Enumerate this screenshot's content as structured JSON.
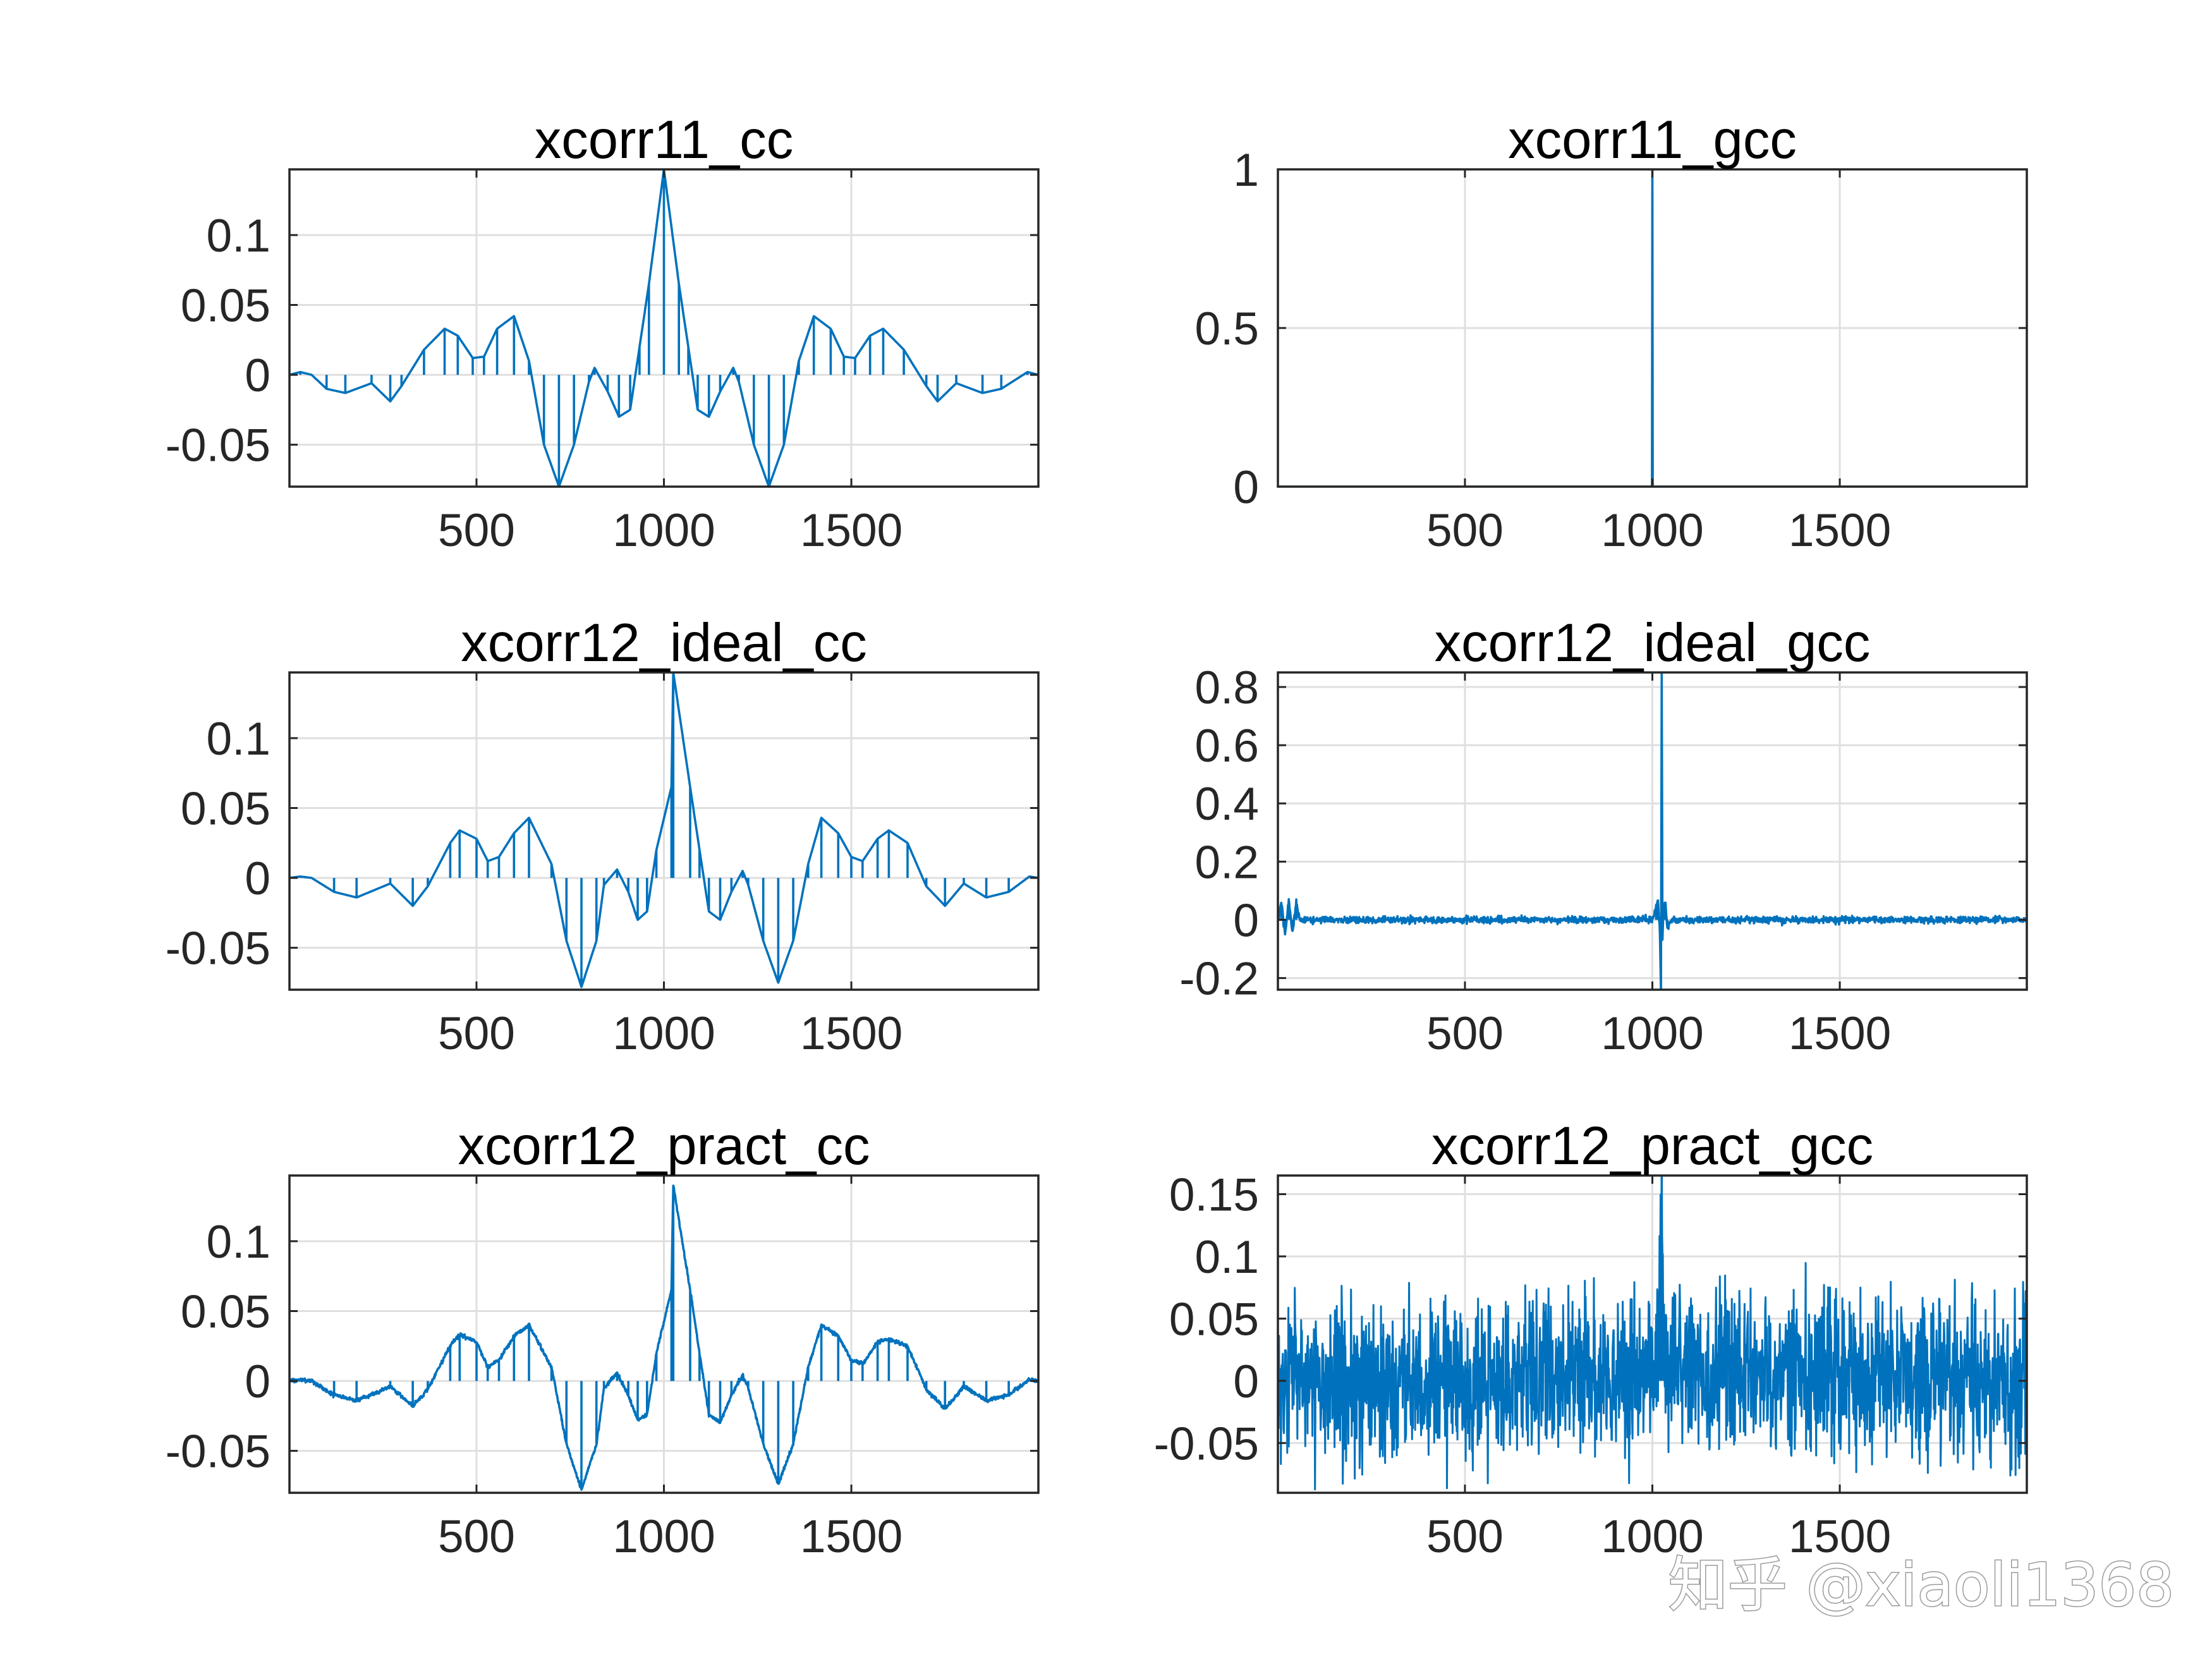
{
  "watermark": "知乎 @xiaoli1368",
  "colors": {
    "line": "#0072BD",
    "grid": "#DFDFDF",
    "axis": "#262626"
  },
  "chart_data": [
    {
      "type": "line",
      "title": "xcorr11_cc",
      "xlim": [
        1,
        1999
      ],
      "ylim": [
        -0.08,
        0.147
      ],
      "xticks": [
        500,
        1000,
        1500
      ],
      "xtick_labels": [
        "500",
        "1000",
        "1500"
      ],
      "yticks": [
        -0.05,
        0,
        0.05,
        0.1
      ],
      "ytick_labels": [
        "-0.05",
        "0",
        "0.05",
        "0.1"
      ],
      "grid": true,
      "noise": 0,
      "series": [
        {
          "x": [
            1,
            30,
            60,
            100,
            150,
            220,
            270,
            300,
            360,
            415,
            450,
            490,
            520,
            555,
            600,
            640,
            680,
            720,
            760,
            800,
            815,
            850,
            880,
            910,
            935,
            960,
            1000,
            1040,
            1065,
            1090,
            1120,
            1150,
            1185,
            1200,
            1240,
            1280,
            1320,
            1360,
            1400,
            1445,
            1480,
            1510,
            1550,
            1585,
            1640,
            1700,
            1730,
            1780,
            1850,
            1900,
            1970,
            1999
          ],
          "y": [
            0,
            0.002,
            0,
            -0.01,
            -0.013,
            -0.006,
            -0.019,
            -0.008,
            0.018,
            0.033,
            0.028,
            0.012,
            0.013,
            0.033,
            0.042,
            0.01,
            -0.05,
            -0.08,
            -0.05,
            -0.005,
            0.005,
            -0.012,
            -0.03,
            -0.025,
            0.02,
            0.065,
            0.147,
            0.065,
            0.02,
            -0.025,
            -0.03,
            -0.012,
            0.005,
            -0.005,
            -0.05,
            -0.08,
            -0.05,
            0.01,
            0.042,
            0.033,
            0.013,
            0.012,
            0.028,
            0.033,
            0.018,
            -0.008,
            -0.019,
            -0.006,
            -0.013,
            -0.01,
            0.002,
            0
          ]
        }
      ]
    },
    {
      "type": "line",
      "title": "xcorr11_gcc",
      "xlim": [
        1,
        1999
      ],
      "ylim": [
        0,
        1
      ],
      "xticks": [
        500,
        1000,
        1500
      ],
      "xtick_labels": [
        "500",
        "1000",
        "1500"
      ],
      "yticks": [
        0,
        0.5,
        1
      ],
      "ytick_labels": [
        "0",
        "0.5",
        "1"
      ],
      "grid": true,
      "noise": 0,
      "series": [
        {
          "x": [
            1,
            999,
            1000,
            1001,
            1999
          ],
          "y": [
            0,
            0,
            1,
            0,
            0
          ]
        }
      ]
    },
    {
      "type": "line",
      "title": "xcorr12_ideal_cc",
      "xlim": [
        1,
        1999
      ],
      "ylim": [
        -0.08,
        0.147
      ],
      "xticks": [
        500,
        1000,
        1500
      ],
      "xtick_labels": [
        "500",
        "1000",
        "1500"
      ],
      "yticks": [
        -0.05,
        0,
        0.05,
        0.1
      ],
      "ytick_labels": [
        "-0.05",
        "0",
        "0.05",
        "0.1"
      ],
      "grid": true,
      "noise": 0,
      "series": [
        {
          "x": [
            1,
            30,
            60,
            120,
            180,
            270,
            330,
            370,
            430,
            455,
            500,
            530,
            560,
            600,
            640,
            700,
            740,
            780,
            820,
            840,
            875,
            905,
            930,
            955,
            980,
            1020,
            1025,
            1070,
            1095,
            1120,
            1150,
            1180,
            1210,
            1225,
            1265,
            1305,
            1345,
            1385,
            1420,
            1465,
            1500,
            1530,
            1570,
            1600,
            1650,
            1700,
            1750,
            1800,
            1860,
            1920,
            1975,
            1999
          ],
          "y": [
            0,
            0.001,
            0,
            -0.01,
            -0.014,
            -0.004,
            -0.02,
            -0.006,
            0.025,
            0.034,
            0.028,
            0.012,
            0.015,
            0.032,
            0.043,
            0.01,
            -0.045,
            -0.078,
            -0.045,
            -0.005,
            0.006,
            -0.01,
            -0.03,
            -0.024,
            0.02,
            0.065,
            0.147,
            0.065,
            0.02,
            -0.024,
            -0.03,
            -0.01,
            0.005,
            -0.005,
            -0.045,
            -0.075,
            -0.045,
            0.01,
            0.043,
            0.032,
            0.015,
            0.012,
            0.028,
            0.034,
            0.025,
            -0.006,
            -0.02,
            -0.004,
            -0.014,
            -0.01,
            0.001,
            0
          ]
        }
      ]
    },
    {
      "type": "line",
      "title": "xcorr12_ideal_gcc",
      "xlim": [
        1,
        1999
      ],
      "ylim": [
        -0.24,
        0.85
      ],
      "xticks": [
        500,
        1000,
        1500
      ],
      "xtick_labels": [
        "500",
        "1000",
        "1500"
      ],
      "yticks": [
        -0.2,
        0,
        0.2,
        0.4,
        0.6,
        0.8
      ],
      "ytick_labels": [
        "-0.2",
        "0",
        "0.2",
        "0.4",
        "0.6",
        "0.8"
      ],
      "grid": true,
      "noise": 0.01,
      "series": [
        {
          "x": [
            1,
            10,
            20,
            30,
            40,
            50,
            60,
            1000,
            1010,
            1015,
            1020,
            1023,
            1025,
            1027,
            1030,
            1035,
            1040,
            1050,
            1999
          ],
          "y": [
            0,
            0.06,
            -0.05,
            0.07,
            -0.04,
            0.06,
            0,
            0,
            0.04,
            0.07,
            -0.05,
            -0.24,
            0.85,
            -0.06,
            0.04,
            0.06,
            -0.03,
            0,
            0
          ]
        }
      ]
    },
    {
      "type": "line",
      "title": "xcorr12_pract_cc",
      "xlim": [
        1,
        1999
      ],
      "ylim": [
        -0.08,
        0.147
      ],
      "xticks": [
        500,
        1000,
        1500
      ],
      "xtick_labels": [
        "500",
        "1000",
        "1500"
      ],
      "yticks": [
        -0.05,
        0,
        0.05,
        0.1
      ],
      "ytick_labels": [
        "-0.05",
        "0",
        "0.05",
        "0.1"
      ],
      "grid": true,
      "noise": 0.0012,
      "series": [
        {
          "x": [
            1,
            30,
            60,
            120,
            180,
            270,
            330,
            370,
            430,
            455,
            500,
            530,
            560,
            600,
            640,
            700,
            740,
            780,
            820,
            840,
            875,
            905,
            930,
            955,
            980,
            1020,
            1025,
            1070,
            1095,
            1120,
            1150,
            1180,
            1210,
            1225,
            1265,
            1305,
            1345,
            1385,
            1420,
            1465,
            1500,
            1530,
            1570,
            1600,
            1650,
            1700,
            1750,
            1800,
            1860,
            1920,
            1975,
            1999
          ],
          "y": [
            0,
            0.001,
            0,
            -0.01,
            -0.014,
            -0.004,
            -0.018,
            -0.006,
            0.025,
            0.033,
            0.028,
            0.01,
            0.015,
            0.032,
            0.04,
            0.01,
            -0.045,
            -0.078,
            -0.045,
            -0.005,
            0.006,
            -0.01,
            -0.028,
            -0.024,
            0.02,
            0.065,
            0.14,
            0.065,
            0.02,
            -0.024,
            -0.03,
            -0.01,
            0.004,
            -0.005,
            -0.045,
            -0.074,
            -0.045,
            0.01,
            0.04,
            0.032,
            0.015,
            0.012,
            0.028,
            0.03,
            0.025,
            -0.006,
            -0.02,
            -0.004,
            -0.014,
            -0.01,
            0.001,
            0
          ]
        }
      ]
    },
    {
      "type": "line",
      "title": "xcorr12_pract_gcc",
      "xlim": [
        1,
        1999
      ],
      "ylim": [
        -0.09,
        0.165
      ],
      "xticks": [
        500,
        1000,
        1500
      ],
      "xtick_labels": [
        "500",
        "1000",
        "1500"
      ],
      "yticks": [
        -0.05,
        0,
        0.05,
        0.1,
        0.15
      ],
      "ytick_labels": [
        "-0.05",
        "0",
        "0.05",
        "0.1",
        "0.15"
      ],
      "grid": true,
      "noise": 0.055,
      "series": [
        {
          "x": [
            1,
            1000,
            1012,
            1018,
            1022,
            1025,
            1028,
            1032,
            1040,
            1999
          ],
          "y": [
            0,
            0,
            0.03,
            0.05,
            0.1,
            0.165,
            0.07,
            0.03,
            0.01,
            0
          ]
        }
      ]
    }
  ]
}
